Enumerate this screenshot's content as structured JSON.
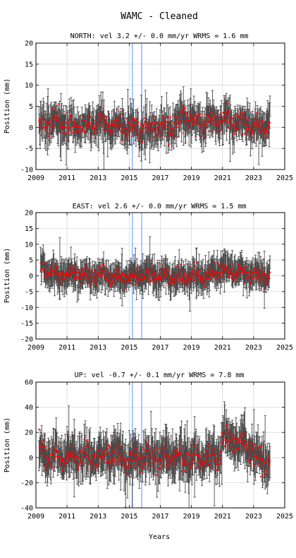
{
  "figure": {
    "title": "WAMC - Cleaned",
    "xlabel": "Years"
  },
  "colors": {
    "points": "#ff0000",
    "error_bars": "#4a4a4a",
    "vertical_markers": "#99b8ff",
    "grid": "#d8d8d8"
  },
  "chart_data": [
    {
      "type": "scatter",
      "title": "NORTH: vel 3.2 +/- 0.0 mm/yr WRMS = 1.6 mm",
      "xlabel": "",
      "ylabel": "Position (mm)",
      "xlim": [
        2009,
        2025
      ],
      "ylim": [
        -10,
        20
      ],
      "xticks": [
        "2009",
        "2011",
        "2013",
        "2015",
        "2017",
        "2019",
        "2021",
        "2023",
        "2025"
      ],
      "yticks": [
        "-10",
        "-5",
        "0",
        "5",
        "10",
        "15",
        "20"
      ],
      "grid": true,
      "vertical_markers": [
        2015.2,
        2015.8
      ],
      "data_start": 2009.2,
      "data_end": 2024.05,
      "error_bar_typical": 2.5,
      "trend": {
        "x": [
          2009.2,
          2010.0,
          2011.0,
          2012.0,
          2013.0,
          2014.0,
          2015.0,
          2016.0,
          2017.0,
          2018.0,
          2018.6,
          2019.2,
          2020.0,
          2021.0,
          2022.0,
          2023.0,
          2024.0
        ],
        "y": [
          0.5,
          1.5,
          0.5,
          0.0,
          1.0,
          0.5,
          0.0,
          -0.5,
          0.0,
          0.5,
          2.5,
          1.5,
          1.0,
          2.0,
          1.0,
          0.0,
          0.5
        ]
      },
      "scatter_sd": 1.6
    },
    {
      "type": "scatter",
      "title": "EAST: vel 2.6 +/- 0.0 mm/yr WRMS = 1.5 mm",
      "xlabel": "",
      "ylabel": "Position (mm)",
      "xlim": [
        2009,
        2025
      ],
      "ylim": [
        -20,
        20
      ],
      "xticks": [
        "2009",
        "2011",
        "2013",
        "2015",
        "2017",
        "2019",
        "2021",
        "2023",
        "2025"
      ],
      "yticks": [
        "-20",
        "-15",
        "-10",
        "-5",
        "0",
        "5",
        "10",
        "15",
        "20"
      ],
      "grid": true,
      "vertical_markers": [
        2015.2,
        2015.8
      ],
      "data_start": 2009.3,
      "data_end": 2024.05,
      "error_bar_typical": 3.0,
      "trend": {
        "x": [
          2009.3,
          2009.8,
          2010.5,
          2011.0,
          2012.0,
          2013.0,
          2014.0,
          2015.0,
          2016.0,
          2017.0,
          2018.0,
          2019.0,
          2020.0,
          2021.0,
          2022.0,
          2023.0,
          2024.0
        ],
        "y": [
          3.0,
          1.5,
          0.0,
          0.5,
          0.0,
          0.0,
          -0.5,
          -0.5,
          0.5,
          0.0,
          -0.5,
          0.0,
          -0.5,
          2.0,
          1.0,
          0.5,
          0.0
        ]
      },
      "scatter_sd": 1.5
    },
    {
      "type": "scatter",
      "title": "UP: vel -0.7 +/- 0.1 mm/yr WRMS = 7.8 mm",
      "xlabel": "Years",
      "ylabel": "Position (mm)",
      "xlim": [
        2009,
        2025
      ],
      "ylim": [
        -40,
        60
      ],
      "xticks": [
        "2009",
        "2011",
        "2013",
        "2015",
        "2017",
        "2019",
        "2021",
        "2023",
        "2025"
      ],
      "yticks": [
        "-40",
        "-20",
        "0",
        "20",
        "40",
        "60"
      ],
      "grid": true,
      "vertical_markers": [
        2015.2,
        2015.8
      ],
      "data_start": 2009.2,
      "data_end": 2024.05,
      "error_bar_typical": 10,
      "trend": {
        "x": [
          2009.2,
          2010.0,
          2011.0,
          2012.0,
          2013.0,
          2014.0,
          2015.0,
          2016.0,
          2017.0,
          2018.0,
          2019.0,
          2020.0,
          2020.8,
          2021.0,
          2022.0,
          2022.6,
          2023.0,
          2024.0
        ],
        "y": [
          5,
          2,
          0,
          2,
          0,
          3,
          -2,
          2,
          0,
          1,
          -2,
          0,
          0,
          15,
          12,
          10,
          0,
          -5
        ]
      },
      "scatter_sd": 6.0
    }
  ]
}
